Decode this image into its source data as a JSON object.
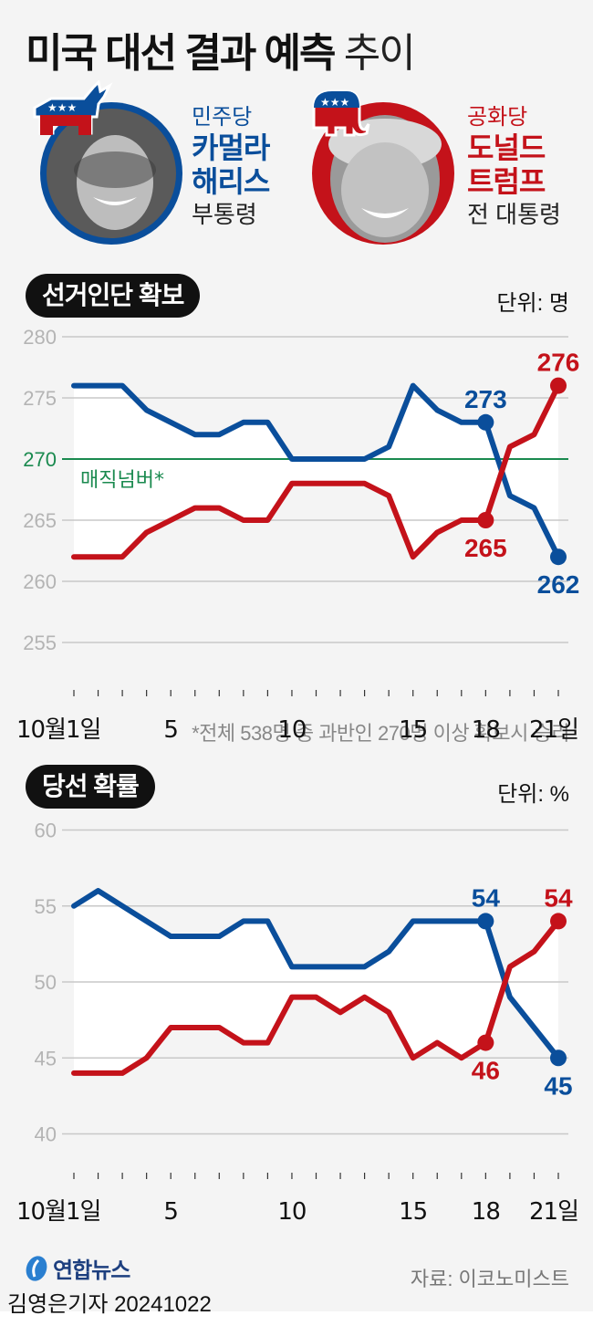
{
  "header": {
    "title_bold": "미국 대선 결과 예측",
    "title_light": "추이"
  },
  "candidates": [
    {
      "party": "민주당",
      "name_line1": "카멀라",
      "name_line2": "해리스",
      "role": "부통령",
      "color": "#0a4e9b",
      "logo": "democrat-donkey"
    },
    {
      "party": "공화당",
      "name_line1": "도널드",
      "name_line2": "트럼프",
      "role": "전 대통령",
      "color": "#c4121a",
      "logo": "republican-elephant"
    }
  ],
  "colors": {
    "blue": "#0a4e9b",
    "red": "#c4121a",
    "magic": "#1a8a4f",
    "grid": "#c8c8c8",
    "axis_text": "#b4b4b4"
  },
  "chart1": {
    "title": "선거인단 확보",
    "unit": "단위: 명",
    "magic_label": "매직넘버*",
    "note": "*전체 538명 중 과반인 270명 이상 확보시 승리"
  },
  "chart2": {
    "title": "당선 확률",
    "unit": "단위: %"
  },
  "footer": {
    "logo_text": "연합뉴스",
    "source": "자료: 이코노미스트",
    "credit": "김영은기자  20241022"
  },
  "chart_data": [
    {
      "type": "line",
      "title": "선거인단 확보",
      "ylabel": "단위: 명",
      "x": [
        1,
        2,
        3,
        4,
        5,
        6,
        7,
        8,
        9,
        10,
        11,
        12,
        13,
        14,
        15,
        16,
        17,
        18,
        19,
        20,
        21
      ],
      "xtick_labels": [
        {
          "day": 1,
          "label": "10월1일"
        },
        {
          "day": 5,
          "label": "5"
        },
        {
          "day": 10,
          "label": "10"
        },
        {
          "day": 15,
          "label": "15"
        },
        {
          "day": 18,
          "label": "18"
        },
        {
          "day": 21,
          "label": "21일"
        }
      ],
      "yticks": [
        280,
        275,
        270,
        265,
        260,
        255
      ],
      "ylim": [
        255,
        280
      ],
      "reference_line": {
        "value": 270,
        "label": "매직넘버*"
      },
      "series": [
        {
          "name": "카멀라 해리스",
          "color": "#0a4e9b",
          "values": [
            276,
            276,
            276,
            274,
            273,
            272,
            272,
            273,
            273,
            270,
            270,
            270,
            270,
            271,
            276,
            274,
            273,
            273,
            267,
            266,
            262
          ],
          "annotations": [
            {
              "day": 18,
              "value": 273
            },
            {
              "day": 21,
              "value": 262
            }
          ]
        },
        {
          "name": "도널드 트럼프",
          "color": "#c4121a",
          "values": [
            262,
            262,
            262,
            264,
            265,
            266,
            266,
            265,
            265,
            268,
            268,
            268,
            268,
            267,
            262,
            264,
            265,
            265,
            271,
            272,
            276
          ],
          "annotations": [
            {
              "day": 18,
              "value": 265
            },
            {
              "day": 21,
              "value": 276
            }
          ]
        }
      ],
      "grid": true,
      "note": "*전체 538명 중 과반인 270명 이상 확보시 승리"
    },
    {
      "type": "line",
      "title": "당선 확률",
      "ylabel": "단위: %",
      "x": [
        1,
        2,
        3,
        4,
        5,
        6,
        7,
        8,
        9,
        10,
        11,
        12,
        13,
        14,
        15,
        16,
        17,
        18,
        19,
        20,
        21
      ],
      "xtick_labels": [
        {
          "day": 1,
          "label": "10월1일"
        },
        {
          "day": 5,
          "label": "5"
        },
        {
          "day": 10,
          "label": "10"
        },
        {
          "day": 15,
          "label": "15"
        },
        {
          "day": 18,
          "label": "18"
        },
        {
          "day": 21,
          "label": "21일"
        }
      ],
      "yticks": [
        60,
        55,
        50,
        45,
        40
      ],
      "ylim": [
        40,
        60
      ],
      "series": [
        {
          "name": "카멀라 해리스",
          "color": "#0a4e9b",
          "values": [
            55,
            56,
            55,
            54,
            53,
            53,
            53,
            54,
            54,
            51,
            51,
            51,
            51,
            52,
            54,
            54,
            54,
            54,
            49,
            47,
            45
          ],
          "annotations": [
            {
              "day": 18,
              "value": 54
            },
            {
              "day": 21,
              "value": 45
            }
          ]
        },
        {
          "name": "도널드 트럼프",
          "color": "#c4121a",
          "values": [
            44,
            44,
            44,
            45,
            47,
            47,
            47,
            46,
            46,
            49,
            49,
            48,
            49,
            48,
            45,
            46,
            45,
            46,
            51,
            52,
            54
          ],
          "annotations": [
            {
              "day": 18,
              "value": 46
            },
            {
              "day": 21,
              "value": 54
            }
          ]
        }
      ],
      "grid": true
    }
  ]
}
